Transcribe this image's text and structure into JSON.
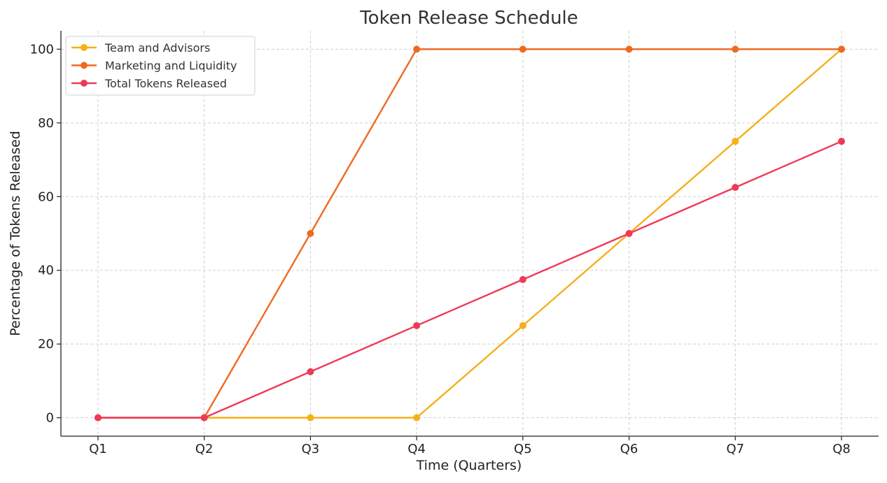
{
  "chart_data": {
    "type": "line",
    "title": "Token Release Schedule",
    "xlabel": "Time (Quarters)",
    "ylabel": "Percentage of Tokens Released",
    "categories": [
      "Q1",
      "Q2",
      "Q3",
      "Q4",
      "Q5",
      "Q6",
      "Q7",
      "Q8"
    ],
    "ylim": [
      -5,
      105
    ],
    "yticks": [
      0,
      20,
      40,
      60,
      80,
      100
    ],
    "grid": true,
    "legend_position": "top-left",
    "series": [
      {
        "name": "Team and Advisors",
        "color": "#f5b01a",
        "values": [
          0,
          0,
          0,
          0,
          25,
          50,
          75,
          100
        ]
      },
      {
        "name": "Marketing and Liquidity",
        "color": "#ee6a24",
        "values": [
          0,
          0,
          50,
          100,
          100,
          100,
          100,
          100
        ]
      },
      {
        "name": "Total Tokens Released",
        "color": "#ee3a58",
        "values": [
          0,
          0,
          12.5,
          25,
          37.5,
          50,
          62.5,
          75
        ]
      }
    ]
  }
}
